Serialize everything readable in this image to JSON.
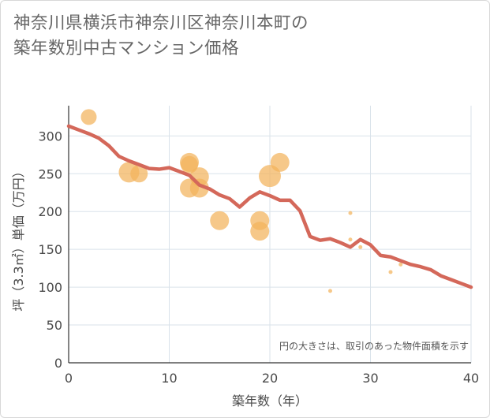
{
  "title_line1": "神奈川県横浜市神奈川区神奈川本町の",
  "title_line2": "築年数別中古マンション価格",
  "colors": {
    "bubble": "#f2b35c",
    "line": "#d4685a",
    "grid": "#d9e2ea",
    "text": "#666666"
  },
  "chart_data": {
    "type": "scatter",
    "xlabel": "築年数（年）",
    "ylabel": "坪（3.3㎡）単価（万円）",
    "xlim": [
      0,
      40
    ],
    "ylim": [
      0,
      340
    ],
    "xticks": [
      0,
      10,
      20,
      30,
      40
    ],
    "yticks": [
      0,
      50,
      100,
      150,
      200,
      250,
      300
    ],
    "note": "円の大きさは、取引のあった物件面積を示す",
    "scatter_points": [
      {
        "x": 2,
        "y": 325,
        "size": 10
      },
      {
        "x": 6,
        "y": 252,
        "size": 13
      },
      {
        "x": 7,
        "y": 250,
        "size": 11
      },
      {
        "x": 12,
        "y": 265,
        "size": 12
      },
      {
        "x": 12,
        "y": 262,
        "size": 11
      },
      {
        "x": 12,
        "y": 231,
        "size": 12
      },
      {
        "x": 13,
        "y": 246,
        "size": 12
      },
      {
        "x": 13,
        "y": 231,
        "size": 12
      },
      {
        "x": 15,
        "y": 188,
        "size": 12
      },
      {
        "x": 19,
        "y": 188,
        "size": 12
      },
      {
        "x": 19,
        "y": 174,
        "size": 12
      },
      {
        "x": 20,
        "y": 247,
        "size": 14
      },
      {
        "x": 21,
        "y": 265,
        "size": 12
      },
      {
        "x": 26,
        "y": 95,
        "size": 2.5
      },
      {
        "x": 28,
        "y": 198,
        "size": 2.5
      },
      {
        "x": 28,
        "y": 163,
        "size": 2.5
      },
      {
        "x": 29,
        "y": 153,
        "size": 2.5
      },
      {
        "x": 32,
        "y": 120,
        "size": 2.5
      },
      {
        "x": 33,
        "y": 130,
        "size": 2.5
      }
    ],
    "trend_line": {
      "x": [
        0,
        1,
        2,
        3,
        4,
        5,
        6,
        7,
        8,
        9,
        10,
        11,
        12,
        13,
        14,
        15,
        16,
        17,
        18,
        19,
        20,
        21,
        22,
        23,
        24,
        25,
        26,
        27,
        28,
        29,
        30,
        31,
        32,
        33,
        34,
        35,
        36,
        37,
        38,
        39,
        40
      ],
      "y": [
        313,
        308,
        303,
        297,
        287,
        273,
        267,
        262,
        257,
        256,
        258,
        253,
        248,
        235,
        230,
        222,
        217,
        206,
        218,
        226,
        221,
        215,
        215,
        201,
        167,
        162,
        164,
        159,
        153,
        163,
        156,
        142,
        140,
        135,
        130,
        127,
        123,
        115,
        110,
        105,
        100
      ]
    }
  }
}
